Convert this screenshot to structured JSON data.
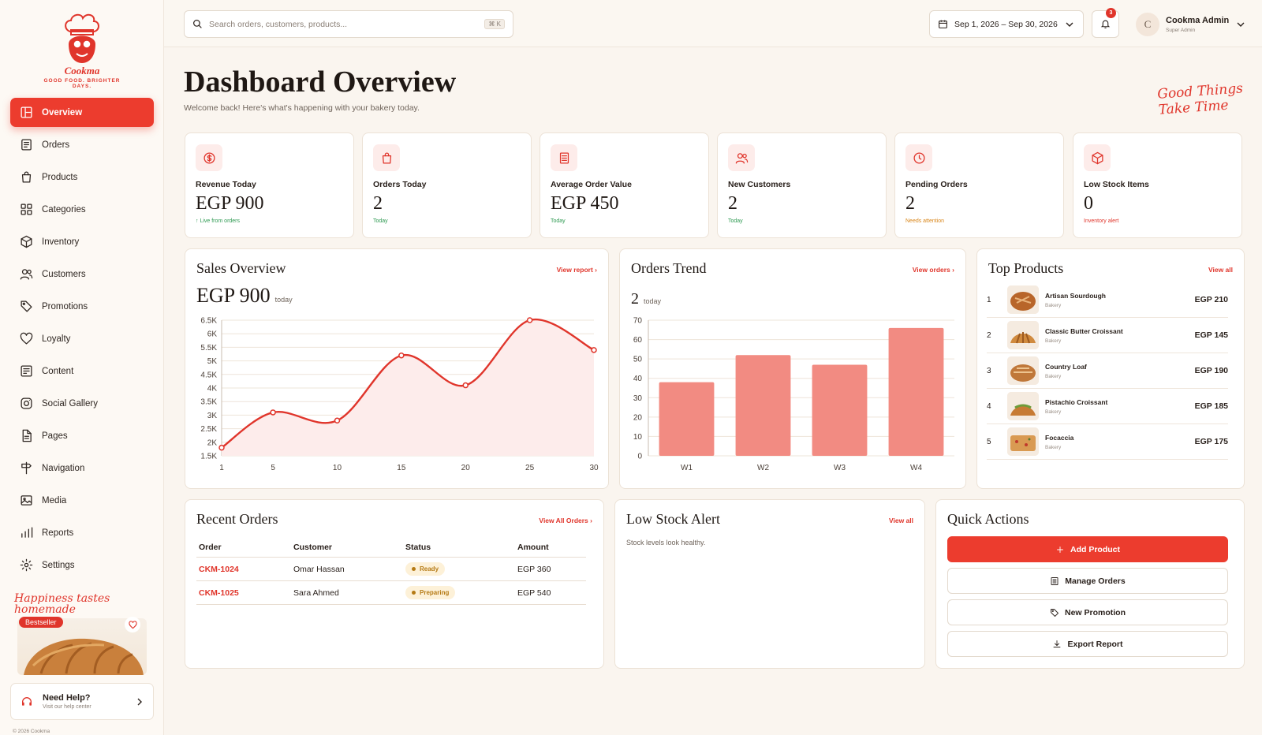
{
  "brand": {
    "name": "Cookma",
    "tagline": "GOOD FOOD. BRIGHTER DAYS."
  },
  "sidebar": {
    "items": [
      {
        "label": "Overview",
        "icon": "layout-icon",
        "active": true
      },
      {
        "label": "Orders",
        "icon": "orders-icon"
      },
      {
        "label": "Products",
        "icon": "bag-icon"
      },
      {
        "label": "Categories",
        "icon": "grid-icon"
      },
      {
        "label": "Inventory",
        "icon": "box-icon"
      },
      {
        "label": "Customers",
        "icon": "users-icon"
      },
      {
        "label": "Promotions",
        "icon": "tag-icon"
      },
      {
        "label": "Loyalty",
        "icon": "heart-icon"
      },
      {
        "label": "Content",
        "icon": "content-icon"
      },
      {
        "label": "Social Gallery",
        "icon": "instagram-icon"
      },
      {
        "label": "Pages",
        "icon": "page-icon"
      },
      {
        "label": "Navigation",
        "icon": "signpost-icon"
      },
      {
        "label": "Media",
        "icon": "image-icon"
      },
      {
        "label": "Reports",
        "icon": "bar-chart-icon"
      },
      {
        "label": "Settings",
        "icon": "gear-icon"
      }
    ],
    "promo": {
      "script": "Happiness tastes homemade",
      "badge": "Bestseller"
    },
    "help": {
      "title": "Need Help?",
      "subtitle": "Visit our help center"
    },
    "copyright": "© 2026 Cookma"
  },
  "topbar": {
    "search_placeholder": "Search orders, customers, products...",
    "search_shortcut": "⌘ K",
    "date_range": "Sep 1, 2026 – Sep 30, 2026",
    "notification_count": "3",
    "user": {
      "initial": "C",
      "name": "Cookma Admin",
      "role": "Super Admin"
    }
  },
  "header": {
    "title": "Dashboard Overview",
    "subtitle": "Welcome back! Here's what's happening with your bakery today.",
    "script_line1": "Good Things",
    "script_line2": "Take Time"
  },
  "stats": [
    {
      "label": "Revenue Today",
      "value": "EGP 900",
      "note": "↑ Live from orders",
      "note_color": "#2e9a52",
      "icon": "dollar-icon"
    },
    {
      "label": "Orders Today",
      "value": "2",
      "note": "Today",
      "note_color": "#2e9a52",
      "icon": "bag-icon"
    },
    {
      "label": "Average Order Value",
      "value": "EGP 450",
      "note": "Today",
      "note_color": "#2e9a52",
      "icon": "receipt-icon"
    },
    {
      "label": "New Customers",
      "value": "2",
      "note": "Today",
      "note_color": "#2e9a52",
      "icon": "users-icon"
    },
    {
      "label": "Pending Orders",
      "value": "2",
      "note": "Needs attention",
      "note_color": "#d9861a",
      "icon": "clock-icon"
    },
    {
      "label": "Low Stock Items",
      "value": "0",
      "note": "Inventory alert",
      "note_color": "#e0352b",
      "icon": "box-icon"
    }
  ],
  "sales": {
    "title": "Sales Overview",
    "link": "View report",
    "value": "EGP 900",
    "unit": "today"
  },
  "trend": {
    "title": "Orders Trend",
    "link": "View orders",
    "value": "2",
    "unit": "today"
  },
  "chart_data": [
    {
      "type": "area",
      "x": [
        1,
        5,
        10,
        15,
        20,
        25,
        30
      ],
      "series": [
        {
          "values": [
            1800,
            3100,
            2800,
            5200,
            4100,
            6500,
            5400
          ]
        }
      ],
      "xticks": [
        "1",
        "5",
        "10",
        "15",
        "20",
        "25",
        "30"
      ],
      "yticks": [
        "1.5K",
        "2K",
        "2.5K",
        "3K",
        "3.5K",
        "4K",
        "4.5K",
        "5K",
        "5.5K",
        "6K",
        "6.5K"
      ],
      "ylim": [
        1500,
        6500
      ],
      "color": "#e0352b",
      "grid": true
    },
    {
      "type": "bar",
      "categories": [
        "W1",
        "W2",
        "W3",
        "W4"
      ],
      "values": [
        38,
        52,
        47,
        66
      ],
      "yticks": [
        "0",
        "10",
        "20",
        "30",
        "40",
        "50",
        "60",
        "70"
      ],
      "ylim": [
        0,
        70
      ],
      "color": "#f28b82",
      "grid": true
    }
  ],
  "top_products": {
    "title": "Top Products",
    "link": "View all",
    "items": [
      {
        "rank": "1",
        "name": "Artisan Sourdough",
        "category": "Bakery",
        "price": "EGP 210"
      },
      {
        "rank": "2",
        "name": "Classic Butter Croissant",
        "category": "Bakery",
        "price": "EGP 145"
      },
      {
        "rank": "3",
        "name": "Country Loaf",
        "category": "Bakery",
        "price": "EGP 190"
      },
      {
        "rank": "4",
        "name": "Pistachio Croissant",
        "category": "Bakery",
        "price": "EGP 185"
      },
      {
        "rank": "5",
        "name": "Focaccia",
        "category": "Bakery",
        "price": "EGP 175"
      }
    ]
  },
  "recent_orders": {
    "title": "Recent Orders",
    "link": "View All Orders",
    "columns": [
      "Order",
      "Customer",
      "Status",
      "Amount"
    ],
    "rows": [
      {
        "order": "CKM-1024",
        "customer": "Omar Hassan",
        "status": "Ready",
        "amount": "EGP 360"
      },
      {
        "order": "CKM-1025",
        "customer": "Sara Ahmed",
        "status": "Preparing",
        "amount": "EGP 540"
      }
    ]
  },
  "low_stock": {
    "title": "Low Stock Alert",
    "link": "View all",
    "message": "Stock levels look healthy."
  },
  "quick_actions": {
    "title": "Quick Actions",
    "buttons": [
      {
        "label": "Add Product",
        "icon": "plus-icon",
        "primary": true
      },
      {
        "label": "Manage Orders",
        "icon": "list-icon"
      },
      {
        "label": "New Promotion",
        "icon": "tag-icon"
      },
      {
        "label": "Export Report",
        "icon": "download-icon"
      }
    ]
  }
}
